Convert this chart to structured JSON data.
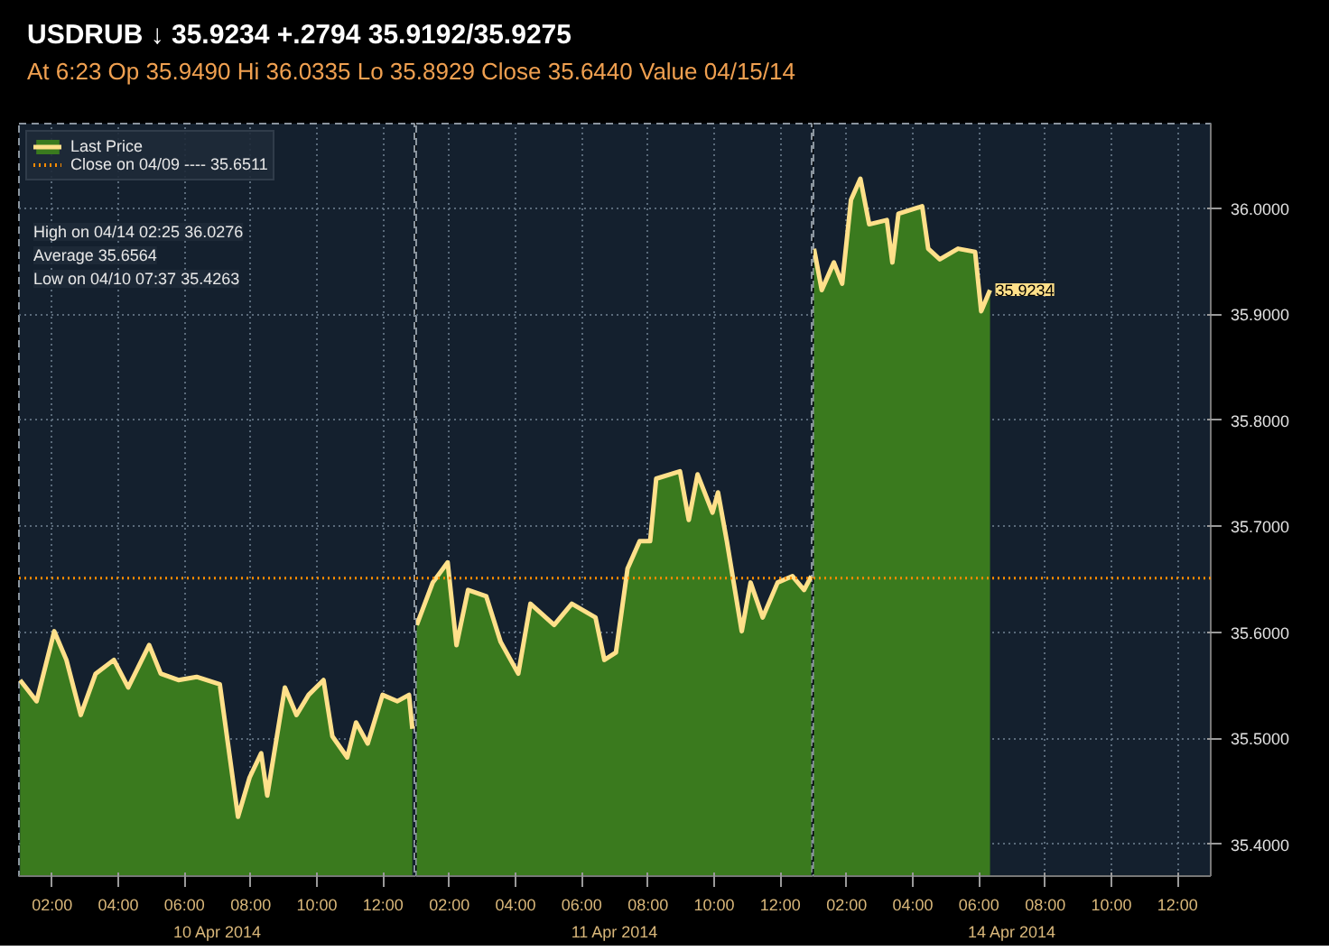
{
  "chart_data": [
    {
      "type": "area",
      "title": "USDRUB  ↓ 35.9234  +.2794    35.9192/35.9275",
      "subtitle": "At 6:23   Op 35.9490   Hi 36.0335   Lo 35.8929   Close 35.6440   Value 04/15/14",
      "xlabel": "10 Apr 2014",
      "series": [
        {
          "name": "Last Price",
          "color": "#ffe08a",
          "x": [
            "2014-04-10T01:02",
            "2014-04-10T01:32",
            "2014-04-10T02:04",
            "2014-04-10T02:26",
            "2014-04-10T02:52",
            "2014-04-10T03:19",
            "2014-04-10T03:52",
            "2014-04-10T04:18",
            "2014-04-10T04:56",
            "2014-04-10T05:17",
            "2014-04-10T05:49",
            "2014-04-10T06:22",
            "2014-04-10T07:04",
            "2014-04-10T07:37",
            "2014-04-10T07:58",
            "2014-04-10T08:19",
            "2014-04-10T08:30",
            "2014-04-10T09:02",
            "2014-04-10T09:23",
            "2014-04-10T09:45",
            "2014-04-10T10:12",
            "2014-04-10T10:28",
            "2014-04-10T10:55",
            "2014-04-10T11:11",
            "2014-04-10T11:32",
            "2014-04-10T11:59",
            "2014-04-10T12:26",
            "2014-04-10T12:47",
            "2014-04-10T12:53"
          ],
          "values": [
            35.555,
            35.535,
            35.601,
            35.574,
            35.522,
            35.561,
            35.574,
            35.548,
            35.588,
            35.561,
            35.555,
            35.558,
            35.551,
            35.426,
            35.463,
            35.486,
            35.446,
            35.548,
            35.522,
            35.541,
            35.555,
            35.502,
            35.482,
            35.515,
            35.495,
            35.541,
            35.535,
            35.541,
            35.509
          ]
        }
      ],
      "xlim": [
        "2014-04-10T01:00",
        "2014-04-10T13:00"
      ],
      "xticks": [
        {
          "value": "2014-04-10T02:00",
          "label": "02:00"
        },
        {
          "value": "2014-04-10T04:00",
          "label": "04:00"
        },
        {
          "value": "2014-04-10T06:00",
          "label": "06:00"
        },
        {
          "value": "2014-04-10T08:00",
          "label": "08:00"
        },
        {
          "value": "2014-04-10T10:00",
          "label": "10:00"
        },
        {
          "value": "2014-04-10T12:00",
          "label": "12:00"
        }
      ],
      "ylim": [
        35.37,
        36.08
      ],
      "yticks": [
        35.4,
        35.5,
        35.6,
        35.7,
        35.8,
        35.9,
        36.0
      ],
      "tick_labels": "x",
      "ref_lines": [
        {
          "axis": "y",
          "value": 35.6511,
          "label": "Close on 04/09 ---- 35.6511",
          "color": "#ff8c00",
          "line_style": "dotted"
        }
      ],
      "annotations": [
        "High on 04/14 02:25 36.0276",
        "Average 35.6564",
        "Low on 04/10 07:37 35.4263"
      ],
      "grid": true,
      "legend": "top left"
    },
    {
      "type": "area",
      "xlabel": "11 Apr 2014",
      "series": [
        {
          "color": "#ffe08a",
          "x": [
            "2014-04-11T01:01",
            "2014-04-11T01:30",
            "2014-04-11T01:57",
            "2014-04-11T02:13",
            "2014-04-11T02:34",
            "2014-04-11T03:07",
            "2014-04-11T03:33",
            "2014-04-11T04:05",
            "2014-04-11T04:27",
            "2014-04-11T05:10",
            "2014-04-11T05:42",
            "2014-04-11T06:25",
            "2014-04-11T06:41",
            "2014-04-11T07:02",
            "2014-04-11T07:23",
            "2014-04-11T07:45",
            "2014-04-11T08:04",
            "2014-04-11T08:15",
            "2014-04-11T08:58",
            "2014-04-11T09:14",
            "2014-04-11T09:30",
            "2014-04-11T09:57",
            "2014-04-11T10:07",
            "2014-04-11T10:23",
            "2014-04-11T10:50",
            "2014-04-11T11:06",
            "2014-04-11T11:28",
            "2014-04-11T11:55",
            "2014-04-11T12:22",
            "2014-04-11T12:43",
            "2014-04-11T12:56"
          ],
          "values": [
            35.607,
            35.647,
            35.666,
            35.588,
            35.64,
            35.634,
            35.591,
            35.561,
            35.627,
            35.607,
            35.627,
            35.614,
            35.574,
            35.581,
            35.66,
            35.686,
            35.686,
            35.745,
            35.752,
            35.706,
            35.749,
            35.713,
            35.732,
            35.686,
            35.601,
            35.647,
            35.614,
            35.647,
            35.653,
            35.64,
            35.653
          ]
        }
      ],
      "xlim": [
        "2014-04-11T01:00",
        "2014-04-11T13:00"
      ],
      "xticks": [
        {
          "value": "2014-04-11T02:00",
          "label": "02:00"
        },
        {
          "value": "2014-04-11T04:00",
          "label": "04:00"
        },
        {
          "value": "2014-04-11T06:00",
          "label": "06:00"
        },
        {
          "value": "2014-04-11T08:00",
          "label": "08:00"
        },
        {
          "value": "2014-04-11T10:00",
          "label": "10:00"
        },
        {
          "value": "2014-04-11T12:00",
          "label": "12:00"
        }
      ],
      "ylim": [
        35.37,
        36.08
      ],
      "yticks": [
        35.4,
        35.5,
        35.6,
        35.7,
        35.8,
        35.9,
        36.0
      ],
      "tick_labels": "x",
      "ref_lines": [
        {
          "axis": "y",
          "value": 35.6511,
          "color": "#ff8c00",
          "line_style": "dotted"
        }
      ],
      "grid": true
    },
    {
      "type": "area",
      "xlabel": "14 Apr 2014",
      "series": [
        {
          "color": "#ffe08a",
          "x": [
            "2014-04-14T01:01",
            "2014-04-14T01:15",
            "2014-04-14T01:37",
            "2014-04-14T01:52",
            "2014-04-14T02:08",
            "2014-04-14T02:25",
            "2014-04-14T02:41",
            "2014-04-14T03:13",
            "2014-04-14T03:23",
            "2014-04-14T03:34",
            "2014-04-14T04:17",
            "2014-04-14T04:28",
            "2014-04-14T04:49",
            "2014-04-14T05:22",
            "2014-04-14T05:53",
            "2014-04-14T06:04",
            "2014-04-14T06:20"
          ],
          "values": [
            35.962,
            35.923,
            35.949,
            35.929,
            36.008,
            36.028,
            35.985,
            35.989,
            35.949,
            35.995,
            36.002,
            35.962,
            35.952,
            35.962,
            35.959,
            35.903,
            35.923
          ]
        }
      ],
      "xlim": [
        "2014-04-14T01:00",
        "2014-04-14T13:00"
      ],
      "xticks": [
        {
          "value": "2014-04-14T02:00",
          "label": "02:00"
        },
        {
          "value": "2014-04-14T04:00",
          "label": "04:00"
        },
        {
          "value": "2014-04-14T06:00",
          "label": "06:00"
        },
        {
          "value": "2014-04-14T08:00",
          "label": "08:00"
        },
        {
          "value": "2014-04-14T10:00",
          "label": "10:00"
        },
        {
          "value": "2014-04-14T12:00",
          "label": "12:00"
        }
      ],
      "ylim": [
        35.37,
        36.08
      ],
      "yticks": [
        {
          "value": 35.4,
          "label": "35.4000"
        },
        {
          "value": 35.5,
          "label": "35.5000"
        },
        {
          "value": 35.6,
          "label": "35.6000"
        },
        {
          "value": 35.7,
          "label": "35.7000"
        },
        {
          "value": 35.8,
          "label": "35.8000"
        },
        {
          "value": 35.9,
          "label": "35.9000"
        },
        {
          "value": 36.0,
          "label": "36.0000"
        }
      ],
      "ref_lines": [
        {
          "axis": "y",
          "value": 35.6511,
          "color": "#ff8c00",
          "line_style": "dotted"
        }
      ],
      "annotations": [
        {
          "text": "35.9234",
          "x": "2014-04-14T06:20",
          "y": 35.9234
        }
      ],
      "grid": true
    }
  ]
}
